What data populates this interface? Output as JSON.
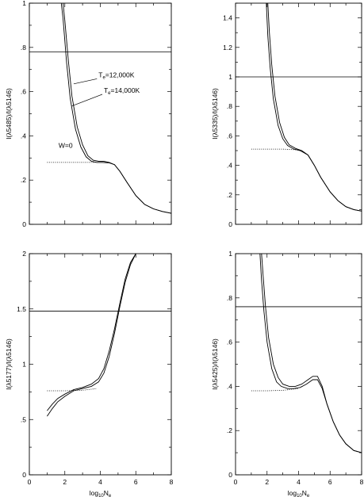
{
  "chart_data": [
    {
      "type": "line",
      "panel": "top-left",
      "xlabel": "",
      "ylabel": "I(λ5485)/I(λ5146)",
      "xlim": [
        0,
        8
      ],
      "ylim": [
        0,
        1
      ],
      "xticks": [],
      "yticks": [
        {
          "v": 0,
          "label": "0"
        },
        {
          "v": 0.2,
          "label": ".2"
        },
        {
          "v": 0.4,
          "label": ".4"
        },
        {
          "v": 0.6,
          "label": ".6"
        },
        {
          "v": 0.8,
          "label": ".8"
        },
        {
          "v": 1,
          "label": "1"
        }
      ],
      "hline": 0.78,
      "series": [
        {
          "name": "Te=12,000K",
          "style": "solid",
          "x": [
            1.9,
            2.0,
            2.2,
            2.4,
            2.7,
            3.0,
            3.3,
            3.6,
            3.9,
            4.2,
            4.5,
            4.8,
            5.1,
            5.5,
            6.0,
            6.5,
            7.0,
            7.5,
            8.0
          ],
          "y": [
            1.0,
            0.92,
            0.74,
            0.58,
            0.44,
            0.36,
            0.31,
            0.29,
            0.285,
            0.285,
            0.28,
            0.27,
            0.24,
            0.19,
            0.13,
            0.09,
            0.07,
            0.058,
            0.05
          ]
        },
        {
          "name": "Te=14,000K",
          "style": "solid",
          "x": [
            1.8,
            1.9,
            2.1,
            2.3,
            2.6,
            2.9,
            3.2,
            3.5,
            3.8,
            4.1,
            4.5,
            4.8,
            5.1,
            5.5,
            6.0,
            6.5,
            7.0,
            7.5,
            8.0
          ],
          "y": [
            1.0,
            0.93,
            0.73,
            0.57,
            0.43,
            0.35,
            0.305,
            0.285,
            0.28,
            0.28,
            0.278,
            0.27,
            0.24,
            0.19,
            0.13,
            0.09,
            0.07,
            0.058,
            0.05
          ]
        },
        {
          "name": "W=0",
          "style": "dotted",
          "x": [
            1.0,
            2.0,
            3.0,
            4.0,
            4.5
          ],
          "y": [
            0.28,
            0.28,
            0.28,
            0.28,
            0.278
          ]
        }
      ],
      "annotations": [
        {
          "label": "Te=12,000K",
          "main": "T",
          "sub": "e",
          "rest": "=12,000K",
          "x": 3.9,
          "y": 0.665,
          "ax": 2.5,
          "ay": 0.635
        },
        {
          "label": "Te=14,000K",
          "main": "T",
          "sub": "e",
          "rest": "=14,000K",
          "x": 4.2,
          "y": 0.595,
          "ax": 2.4,
          "ay": 0.535
        },
        {
          "label": "W=0",
          "main": "W=0",
          "sub": "",
          "rest": "",
          "x": 1.65,
          "y": 0.345
        }
      ]
    },
    {
      "type": "line",
      "panel": "top-right",
      "xlabel": "",
      "ylabel": "I(λ5335)/I(λ5146)",
      "xlim": [
        0,
        8
      ],
      "ylim": [
        0,
        1.5
      ],
      "xticks": [],
      "yticks": [
        {
          "v": 0,
          "label": "0"
        },
        {
          "v": 0.2,
          "label": ".2"
        },
        {
          "v": 0.4,
          "label": ".4"
        },
        {
          "v": 0.6,
          "label": ".6"
        },
        {
          "v": 0.8,
          "label": ".8"
        },
        {
          "v": 1.0,
          "label": "1"
        },
        {
          "v": 1.2,
          "label": "1.2"
        },
        {
          "v": 1.4,
          "label": "1.4"
        }
      ],
      "hline": 1.0,
      "series": [
        {
          "name": "Te=12,000K",
          "style": "solid",
          "x": [
            2.05,
            2.15,
            2.3,
            2.5,
            2.8,
            3.1,
            3.4,
            3.8,
            4.2,
            4.6,
            5.0,
            5.4,
            6.0,
            6.5,
            7.0,
            7.5,
            8.0
          ],
          "y": [
            1.5,
            1.3,
            1.08,
            0.87,
            0.69,
            0.59,
            0.54,
            0.515,
            0.5,
            0.47,
            0.4,
            0.32,
            0.22,
            0.16,
            0.12,
            0.1,
            0.09
          ]
        },
        {
          "name": "Te=14,000K",
          "style": "solid",
          "x": [
            1.95,
            2.05,
            2.2,
            2.4,
            2.7,
            3.0,
            3.3,
            3.7,
            4.1,
            4.6,
            5.0,
            5.4,
            6.0,
            6.5,
            7.0,
            7.5,
            8.0
          ],
          "y": [
            1.5,
            1.28,
            1.06,
            0.85,
            0.67,
            0.58,
            0.535,
            0.51,
            0.5,
            0.47,
            0.4,
            0.32,
            0.22,
            0.16,
            0.12,
            0.1,
            0.09
          ]
        },
        {
          "name": "W=0",
          "style": "dotted",
          "x": [
            1.0,
            2.0,
            3.0,
            4.0,
            4.2
          ],
          "y": [
            0.51,
            0.51,
            0.51,
            0.505,
            0.5
          ]
        }
      ],
      "annotations": []
    },
    {
      "type": "line",
      "panel": "bottom-left",
      "xlabel": "log10Ne",
      "xlabel_main": "log",
      "xlabel_sub": "10",
      "xlabel_rest": "N",
      "xlabel_sub2": "e",
      "ylabel": "I(λ5177)/I(λ5146)",
      "xlim": [
        0,
        8
      ],
      "ylim": [
        0,
        2
      ],
      "xticks": [
        {
          "v": 0,
          "label": "0"
        },
        {
          "v": 2,
          "label": "2"
        },
        {
          "v": 4,
          "label": "4"
        },
        {
          "v": 6,
          "label": "6"
        },
        {
          "v": 8,
          "label": "8"
        }
      ],
      "yticks": [
        {
          "v": 0,
          "label": "0"
        },
        {
          "v": 0.5,
          "label": ".5"
        },
        {
          "v": 1.0,
          "label": "1"
        },
        {
          "v": 1.5,
          "label": "1.5"
        },
        {
          "v": 2.0,
          "label": "2"
        }
      ],
      "hline": 1.48,
      "series": [
        {
          "name": "Te=12,000K",
          "style": "solid",
          "x": [
            1.0,
            1.3,
            1.6,
            2.0,
            2.5,
            3.0,
            3.5,
            3.9,
            4.2,
            4.5,
            4.8,
            5.1,
            5.4,
            5.7,
            6.0
          ],
          "y": [
            0.53,
            0.6,
            0.66,
            0.71,
            0.76,
            0.78,
            0.8,
            0.84,
            0.92,
            1.07,
            1.28,
            1.52,
            1.74,
            1.9,
            2.0
          ]
        },
        {
          "name": "Te=14,000K",
          "style": "solid",
          "x": [
            1.0,
            1.3,
            1.6,
            2.0,
            2.5,
            3.0,
            3.5,
            3.9,
            4.2,
            4.5,
            4.8,
            5.1,
            5.4,
            5.7,
            6.0
          ],
          "y": [
            0.58,
            0.64,
            0.69,
            0.73,
            0.77,
            0.79,
            0.82,
            0.87,
            0.96,
            1.12,
            1.32,
            1.55,
            1.77,
            1.92,
            2.0
          ]
        },
        {
          "name": "W=0",
          "style": "dotted",
          "x": [
            1.0,
            2.0,
            3.0,
            3.8
          ],
          "y": [
            0.76,
            0.76,
            0.765,
            0.78
          ]
        }
      ],
      "annotations": []
    },
    {
      "type": "line",
      "panel": "bottom-right",
      "xlabel": "log10Ne",
      "xlabel_main": "log",
      "xlabel_sub": "10",
      "xlabel_rest": "N",
      "xlabel_sub2": "e",
      "ylabel": "I(λ5425)/I(λ5146)",
      "xlim": [
        0,
        8
      ],
      "ylim": [
        0,
        1
      ],
      "xticks": [
        {
          "v": 0,
          "label": "0"
        },
        {
          "v": 2,
          "label": "2"
        },
        {
          "v": 4,
          "label": "4"
        },
        {
          "v": 6,
          "label": "6"
        },
        {
          "v": 8,
          "label": "8"
        }
      ],
      "yticks": [
        {
          "v": 0,
          "label": "0"
        },
        {
          "v": 0.2,
          "label": ".2"
        },
        {
          "v": 0.4,
          "label": ".4"
        },
        {
          "v": 0.6,
          "label": ".6"
        },
        {
          "v": 0.8,
          "label": ".8"
        },
        {
          "v": 1.0,
          "label": "1"
        }
      ],
      "hline": 0.76,
      "series": [
        {
          "name": "Te=12,000K",
          "style": "solid",
          "x": [
            1.65,
            1.75,
            1.9,
            2.1,
            2.4,
            2.7,
            3.0,
            3.4,
            3.8,
            4.2,
            4.6,
            4.9,
            5.2,
            5.5,
            5.8,
            6.2,
            6.6,
            7.0,
            7.5,
            8.0
          ],
          "y": [
            1.0,
            0.9,
            0.76,
            0.62,
            0.5,
            0.44,
            0.41,
            0.4,
            0.4,
            0.41,
            0.43,
            0.445,
            0.445,
            0.4,
            0.32,
            0.24,
            0.18,
            0.14,
            0.11,
            0.1
          ]
        },
        {
          "name": "Te=14,000K",
          "style": "solid",
          "x": [
            1.55,
            1.65,
            1.8,
            2.0,
            2.3,
            2.6,
            2.9,
            3.3,
            3.7,
            4.1,
            4.5,
            4.9,
            5.2,
            5.5,
            5.8,
            6.2,
            6.6,
            7.0,
            7.5,
            8.0
          ],
          "y": [
            1.0,
            0.88,
            0.74,
            0.6,
            0.48,
            0.42,
            0.4,
            0.39,
            0.39,
            0.395,
            0.41,
            0.43,
            0.43,
            0.39,
            0.32,
            0.24,
            0.18,
            0.14,
            0.11,
            0.1
          ]
        },
        {
          "name": "W=0",
          "style": "dotted",
          "x": [
            1.0,
            2.0,
            3.0,
            4.0
          ],
          "y": [
            0.38,
            0.38,
            0.382,
            0.39
          ]
        }
      ],
      "annotations": []
    }
  ]
}
